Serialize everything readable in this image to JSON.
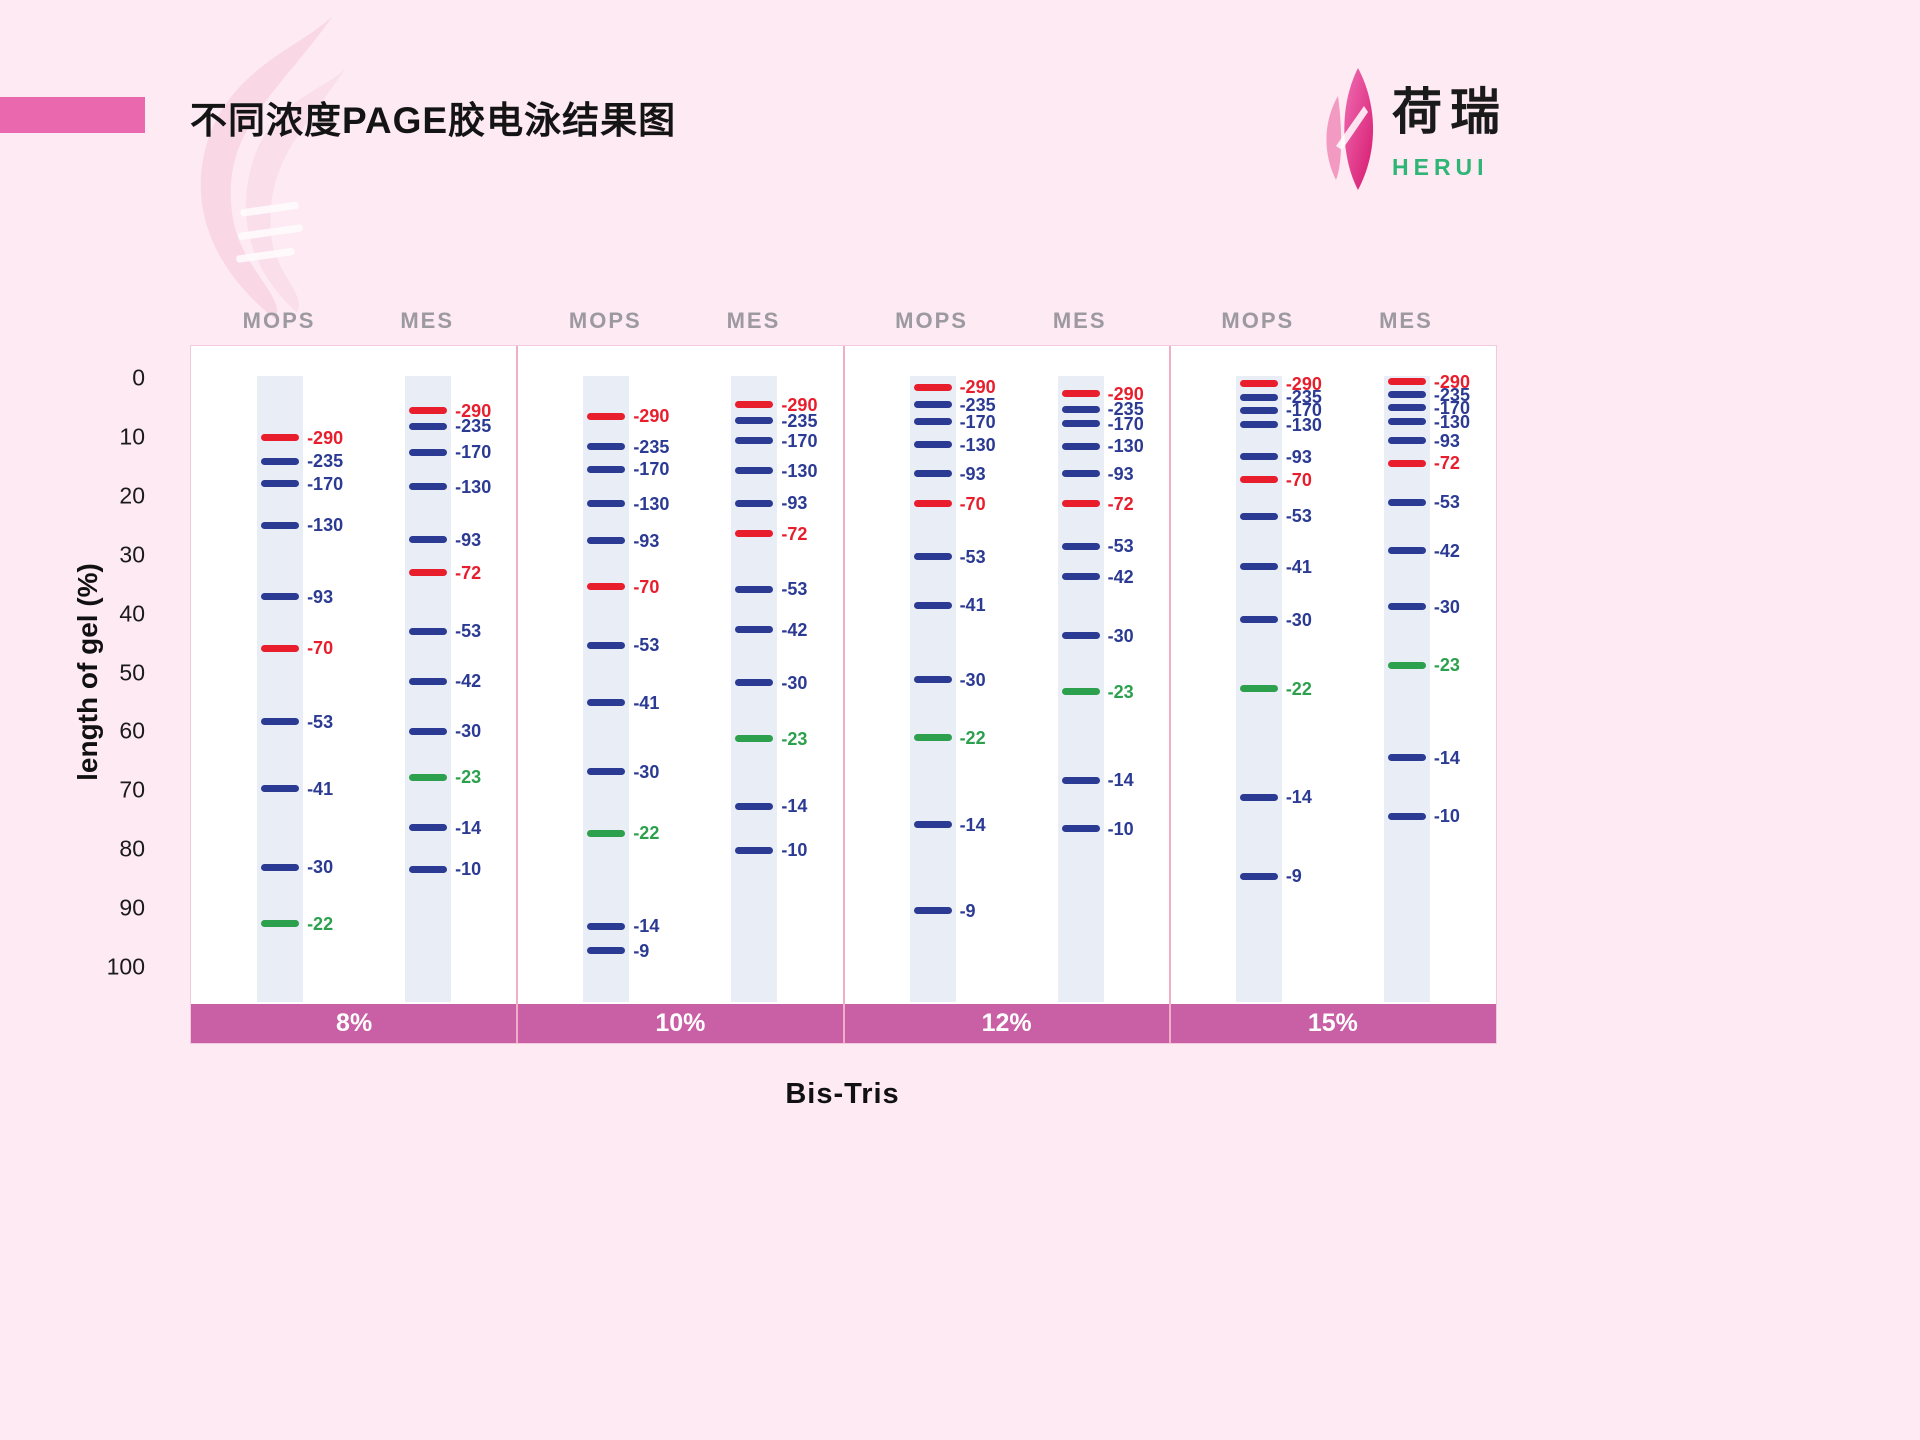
{
  "header": {
    "title": "不同浓度PAGE胶电泳结果图",
    "logo_cn": "荷瑞",
    "logo_en": "HERUI"
  },
  "axes": {
    "y_label": "length of gel (%)",
    "x_label": "Bis-Tris"
  },
  "colors": {
    "background": "#fdeaf2",
    "accent_bar": "#ea68ae",
    "lane_bg": "#e9edf6",
    "group_band": "#c95fa4",
    "band_navy": "#2b3a93",
    "band_red": "#e81e2d",
    "band_green": "#2ca04c",
    "header_gray": "#9d99a0",
    "logo_green": "#2fb576"
  },
  "chart_data": {
    "type": "gel-electrophoresis-band-chart",
    "title": "不同浓度PAGE胶电泳结果图",
    "xlabel": "Bis-Tris",
    "ylabel": "length of gel (%)",
    "ylim": [
      0,
      100
    ],
    "y_ticks": [
      0,
      10,
      20,
      30,
      40,
      50,
      60,
      70,
      80,
      90,
      100
    ],
    "legend_note": "band positions are percent migration down the gel; colors: red / navy / green as printed",
    "groups": [
      {
        "concentration": "8%",
        "lanes": [
          {
            "buffer": "MOPS",
            "bands": [
              {
                "label": "-290",
                "pos": 10.0,
                "color": "red"
              },
              {
                "label": "-235",
                "pos": 14.0,
                "color": "navy"
              },
              {
                "label": "-170",
                "pos": 17.8,
                "color": "navy"
              },
              {
                "label": "-130",
                "pos": 24.8,
                "color": "navy"
              },
              {
                "label": "-93",
                "pos": 37.0,
                "color": "navy"
              },
              {
                "label": "-70",
                "pos": 45.7,
                "color": "red"
              },
              {
                "label": "-53",
                "pos": 58.2,
                "color": "navy"
              },
              {
                "label": "-41",
                "pos": 69.6,
                "color": "navy"
              },
              {
                "label": "-30",
                "pos": 82.9,
                "color": "navy"
              },
              {
                "label": "-22",
                "pos": 92.5,
                "color": "green"
              }
            ]
          },
          {
            "buffer": "MES",
            "bands": [
              {
                "label": "-290",
                "pos": 5.4,
                "color": "red"
              },
              {
                "label": "-235",
                "pos": 8.0,
                "color": "navy"
              },
              {
                "label": "-170",
                "pos": 12.4,
                "color": "navy"
              },
              {
                "label": "-130",
                "pos": 18.3,
                "color": "navy"
              },
              {
                "label": "-93",
                "pos": 27.3,
                "color": "navy"
              },
              {
                "label": "-72",
                "pos": 32.9,
                "color": "red"
              },
              {
                "label": "-53",
                "pos": 42.8,
                "color": "navy"
              },
              {
                "label": "-42",
                "pos": 51.3,
                "color": "navy"
              },
              {
                "label": "-30",
                "pos": 59.8,
                "color": "navy"
              },
              {
                "label": "-23",
                "pos": 67.6,
                "color": "green"
              },
              {
                "label": "-14",
                "pos": 76.2,
                "color": "navy"
              },
              {
                "label": "-10",
                "pos": 83.2,
                "color": "navy"
              }
            ]
          }
        ]
      },
      {
        "concentration": "10%",
        "lanes": [
          {
            "buffer": "MOPS",
            "bands": [
              {
                "label": "-290",
                "pos": 6.3,
                "color": "red"
              },
              {
                "label": "-235",
                "pos": 11.5,
                "color": "navy"
              },
              {
                "label": "-170",
                "pos": 15.3,
                "color": "navy"
              },
              {
                "label": "-130",
                "pos": 21.2,
                "color": "navy"
              },
              {
                "label": "-93",
                "pos": 27.5,
                "color": "navy"
              },
              {
                "label": "-70",
                "pos": 35.3,
                "color": "red"
              },
              {
                "label": "-53",
                "pos": 45.2,
                "color": "navy"
              },
              {
                "label": "-41",
                "pos": 55.0,
                "color": "navy"
              },
              {
                "label": "-30",
                "pos": 66.7,
                "color": "navy"
              },
              {
                "label": "-22",
                "pos": 77.1,
                "color": "green"
              },
              {
                "label": "-14",
                "pos": 92.9,
                "color": "navy"
              },
              {
                "label": "-9",
                "pos": 97.1,
                "color": "navy"
              }
            ]
          },
          {
            "buffer": "MES",
            "bands": [
              {
                "label": "-290",
                "pos": 4.4,
                "color": "red"
              },
              {
                "label": "-235",
                "pos": 7.1,
                "color": "navy"
              },
              {
                "label": "-170",
                "pos": 10.5,
                "color": "navy"
              },
              {
                "label": "-130",
                "pos": 15.6,
                "color": "navy"
              },
              {
                "label": "-93",
                "pos": 21.1,
                "color": "navy"
              },
              {
                "label": "-72",
                "pos": 26.3,
                "color": "red"
              },
              {
                "label": "-53",
                "pos": 35.7,
                "color": "navy"
              },
              {
                "label": "-42",
                "pos": 42.6,
                "color": "navy"
              },
              {
                "label": "-30",
                "pos": 51.6,
                "color": "navy"
              },
              {
                "label": "-23",
                "pos": 61.1,
                "color": "green"
              },
              {
                "label": "-14",
                "pos": 72.5,
                "color": "navy"
              },
              {
                "label": "-10",
                "pos": 80.0,
                "color": "navy"
              }
            ]
          }
        ]
      },
      {
        "concentration": "12%",
        "lanes": [
          {
            "buffer": "MOPS",
            "bands": [
              {
                "label": "-290",
                "pos": 1.4,
                "color": "red"
              },
              {
                "label": "-235",
                "pos": 4.4,
                "color": "navy"
              },
              {
                "label": "-170",
                "pos": 7.3,
                "color": "navy"
              },
              {
                "label": "-130",
                "pos": 11.2,
                "color": "navy"
              },
              {
                "label": "-93",
                "pos": 16.1,
                "color": "navy"
              },
              {
                "label": "-70",
                "pos": 21.2,
                "color": "red"
              },
              {
                "label": "-53",
                "pos": 30.2,
                "color": "navy"
              },
              {
                "label": "-41",
                "pos": 38.4,
                "color": "navy"
              },
              {
                "label": "-30",
                "pos": 51.1,
                "color": "navy"
              },
              {
                "label": "-22",
                "pos": 60.9,
                "color": "green"
              },
              {
                "label": "-14",
                "pos": 75.7,
                "color": "navy"
              },
              {
                "label": "-9",
                "pos": 90.3,
                "color": "navy"
              }
            ]
          },
          {
            "buffer": "MES",
            "bands": [
              {
                "label": "-290",
                "pos": 2.5,
                "color": "red"
              },
              {
                "label": "-235",
                "pos": 5.1,
                "color": "navy"
              },
              {
                "label": "-170",
                "pos": 7.6,
                "color": "navy"
              },
              {
                "label": "-130",
                "pos": 11.4,
                "color": "navy"
              },
              {
                "label": "-93",
                "pos": 16.1,
                "color": "navy"
              },
              {
                "label": "-72",
                "pos": 21.2,
                "color": "red"
              },
              {
                "label": "-53",
                "pos": 28.4,
                "color": "navy"
              },
              {
                "label": "-42",
                "pos": 33.6,
                "color": "navy"
              },
              {
                "label": "-30",
                "pos": 43.6,
                "color": "navy"
              },
              {
                "label": "-23",
                "pos": 53.1,
                "color": "green"
              },
              {
                "label": "-14",
                "pos": 68.1,
                "color": "navy"
              },
              {
                "label": "-10",
                "pos": 76.4,
                "color": "navy"
              }
            ]
          }
        ]
      },
      {
        "concentration": "15%",
        "lanes": [
          {
            "buffer": "MOPS",
            "bands": [
              {
                "label": "-290",
                "pos": 0.8,
                "color": "red"
              },
              {
                "label": "-235",
                "pos": 3.1,
                "color": "navy"
              },
              {
                "label": "-170",
                "pos": 5.3,
                "color": "navy"
              },
              {
                "label": "-130",
                "pos": 7.8,
                "color": "navy"
              },
              {
                "label": "-93",
                "pos": 13.2,
                "color": "navy"
              },
              {
                "label": "-70",
                "pos": 17.1,
                "color": "red"
              },
              {
                "label": "-53",
                "pos": 23.3,
                "color": "navy"
              },
              {
                "label": "-41",
                "pos": 31.9,
                "color": "navy"
              },
              {
                "label": "-30",
                "pos": 40.9,
                "color": "navy"
              },
              {
                "label": "-22",
                "pos": 52.6,
                "color": "green"
              },
              {
                "label": "-14",
                "pos": 71.0,
                "color": "navy"
              },
              {
                "label": "-9",
                "pos": 84.4,
                "color": "navy"
              }
            ]
          },
          {
            "buffer": "MES",
            "bands": [
              {
                "label": "-290",
                "pos": 0.5,
                "color": "red"
              },
              {
                "label": "-235",
                "pos": 2.7,
                "color": "navy"
              },
              {
                "label": "-170",
                "pos": 4.9,
                "color": "navy"
              },
              {
                "label": "-130",
                "pos": 7.3,
                "color": "navy"
              },
              {
                "label": "-93",
                "pos": 10.5,
                "color": "navy"
              },
              {
                "label": "-72",
                "pos": 14.3,
                "color": "red"
              },
              {
                "label": "-53",
                "pos": 20.9,
                "color": "navy"
              },
              {
                "label": "-42",
                "pos": 29.2,
                "color": "navy"
              },
              {
                "label": "-30",
                "pos": 38.7,
                "color": "navy"
              },
              {
                "label": "-23",
                "pos": 48.6,
                "color": "green"
              },
              {
                "label": "-14",
                "pos": 64.3,
                "color": "navy"
              },
              {
                "label": "-10",
                "pos": 74.2,
                "color": "navy"
              }
            ]
          }
        ]
      }
    ]
  }
}
